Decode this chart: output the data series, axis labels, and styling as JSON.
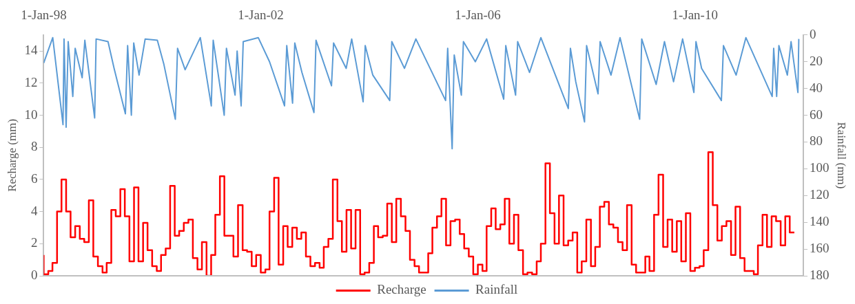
{
  "chart_data": {
    "type": "step",
    "ylabel": "Recharge (mm)",
    "y2label": "Rainfall (mm)",
    "legend": "bottom",
    "marker": "none",
    "xlim": [
      "1998-01-01",
      "2012-01-01"
    ],
    "xticks": [
      {
        "value": "1998-01-01",
        "label": "1-Jan-98"
      },
      {
        "value": "2002-01-01",
        "label": "1-Jan-02"
      },
      {
        "value": "2006-01-01",
        "label": "1-Jan-06"
      },
      {
        "value": "2010-01-01",
        "label": "1-Jan-10"
      }
    ],
    "ylim": [
      0,
      15
    ],
    "yticks": [
      0,
      2,
      4,
      6,
      8,
      10,
      12,
      14
    ],
    "y2lim": [
      180,
      0
    ],
    "y2ticks": [
      0,
      20,
      40,
      60,
      80,
      100,
      120,
      140,
      160,
      180
    ],
    "x": [
      "1998-01",
      "1998-02",
      "1998-03",
      "1998-04",
      "1998-05",
      "1998-06",
      "1998-07",
      "1998-08",
      "1998-09",
      "1998-10",
      "1998-11",
      "1998-12",
      "1999-01",
      "1999-02",
      "1999-03",
      "1999-04",
      "1999-05",
      "1999-06",
      "1999-07",
      "1999-08",
      "1999-09",
      "1999-10",
      "1999-11",
      "1999-12",
      "2000-01",
      "2000-02",
      "2000-03",
      "2000-04",
      "2000-05",
      "2000-06",
      "2000-07",
      "2000-08",
      "2000-09",
      "2000-10",
      "2000-11",
      "2000-12",
      "2001-01",
      "2001-02",
      "2001-03",
      "2001-04",
      "2001-05",
      "2001-06",
      "2001-07",
      "2001-08",
      "2001-09",
      "2001-10",
      "2001-11",
      "2001-12",
      "2002-01",
      "2002-02",
      "2002-03",
      "2002-04",
      "2002-05",
      "2002-06",
      "2002-07",
      "2002-08",
      "2002-09",
      "2002-10",
      "2002-11",
      "2002-12",
      "2003-01",
      "2003-02",
      "2003-03",
      "2003-04",
      "2003-05",
      "2003-06",
      "2003-07",
      "2003-08",
      "2003-09",
      "2003-10",
      "2003-11",
      "2003-12",
      "2004-01",
      "2004-02",
      "2004-03",
      "2004-04",
      "2004-05",
      "2004-06",
      "2004-07",
      "2004-08",
      "2004-09",
      "2004-10",
      "2004-11",
      "2004-12",
      "2005-01",
      "2005-02",
      "2005-03",
      "2005-04",
      "2005-05",
      "2005-06",
      "2005-07",
      "2005-08",
      "2005-09",
      "2005-10",
      "2005-11",
      "2005-12",
      "2006-01",
      "2006-02",
      "2006-03",
      "2006-04",
      "2006-05",
      "2006-06",
      "2006-07",
      "2006-08",
      "2006-09",
      "2006-10",
      "2006-11",
      "2006-12",
      "2007-01",
      "2007-02",
      "2007-03",
      "2007-04",
      "2007-05",
      "2007-06",
      "2007-07",
      "2007-08",
      "2007-09",
      "2007-10",
      "2007-11",
      "2007-12",
      "2008-01",
      "2008-02",
      "2008-03",
      "2008-04",
      "2008-05",
      "2008-06",
      "2008-07",
      "2008-08",
      "2008-09",
      "2008-10",
      "2008-11",
      "2008-12",
      "2009-01",
      "2009-02",
      "2009-03",
      "2009-04",
      "2009-05",
      "2009-06",
      "2009-07",
      "2009-08",
      "2009-09",
      "2009-10",
      "2009-11",
      "2009-12",
      "2010-01",
      "2010-02",
      "2010-03",
      "2010-04",
      "2010-05",
      "2010-06",
      "2010-07",
      "2010-08",
      "2010-09",
      "2010-10",
      "2010-11",
      "2010-12",
      "2011-01",
      "2011-02",
      "2011-03",
      "2011-04",
      "2011-05",
      "2011-06",
      "2011-07",
      "2011-08",
      "2011-09",
      "2011-10",
      "2011-11"
    ],
    "series": [
      {
        "name": "Recharge",
        "color": "#ff0000",
        "values": [
          1.3,
          0.1,
          0.3,
          0.8,
          4.0,
          6.0,
          4.0,
          2.4,
          3.1,
          2.3,
          2.1,
          4.7,
          1.2,
          0.6,
          0.2,
          0.8,
          4.1,
          3.7,
          5.4,
          3.7,
          0.9,
          5.5,
          0.9,
          3.3,
          1.6,
          0.6,
          0.3,
          1.3,
          1.7,
          5.6,
          2.5,
          2.8,
          3.3,
          3.5,
          1.1,
          0.4,
          2.1,
          0.0,
          1.3,
          3.8,
          6.2,
          2.5,
          2.5,
          1.2,
          4.4,
          1.6,
          1.5,
          0.6,
          1.3,
          0.2,
          0.4,
          4.0,
          6.1,
          0.7,
          3.1,
          1.8,
          3.0,
          2.3,
          2.7,
          1.2,
          0.6,
          0.8,
          0.5,
          1.8,
          2.3,
          6.0,
          3.4,
          1.5,
          4.1,
          1.7,
          4.1,
          0.1,
          0.2,
          0.8,
          3.1,
          2.4,
          2.5,
          4.5,
          2.1,
          4.8,
          3.7,
          2.8,
          1.0,
          0.6,
          0.2,
          0.2,
          1.4,
          3.0,
          3.7,
          4.8,
          1.9,
          3.4,
          3.5,
          2.6,
          1.7,
          1.2,
          0.1,
          0.7,
          0.3,
          3.1,
          4.2,
          2.9,
          3.2,
          4.8,
          2.0,
          3.8,
          1.6,
          0.1,
          0.2,
          0.1,
          0.9,
          2.0,
          7.0,
          3.9,
          2.0,
          5.0,
          1.9,
          2.2,
          2.7,
          0.2,
          0.9,
          3.5,
          0.6,
          1.8,
          4.3,
          4.6,
          3.2,
          3.0,
          2.1,
          1.6,
          4.4,
          0.7,
          0.2,
          0.2,
          1.2,
          0.3,
          3.8,
          6.3,
          1.8,
          3.5,
          1.5,
          3.4,
          0.9,
          3.9,
          0.3,
          0.5,
          0.6,
          1.6,
          7.7,
          4.4,
          2.2,
          3.1,
          3.4,
          1.3,
          4.3,
          1.1,
          0.3,
          0.3,
          0.1,
          1.9,
          3.8,
          1.8,
          3.7,
          3.4,
          1.9,
          3.7,
          2.7
        ]
      },
      {
        "name": "Rainfall",
        "color": "#5b9bd5",
        "type": "line",
        "axis": "y2",
        "x": [
          "1998-01-01",
          "1998-03-03",
          "1998-05-11",
          "1998-05-18",
          "1998-06-01",
          "1998-06-15",
          "1998-07-16",
          "1998-08-01",
          "1998-09-17",
          "1998-10-05",
          "1998-12-10",
          "1998-12-20",
          "1999-03-10",
          "1999-04-20",
          "1999-07-05",
          "1999-07-20",
          "1999-08-14",
          "1999-08-30",
          "1999-10-05",
          "1999-11-15",
          "2000-02-05",
          "2000-03-20",
          "2000-06-05",
          "2000-06-20",
          "2000-08-10",
          "2000-11-20",
          "2001-02-02",
          "2001-02-15",
          "2001-04-30",
          "2001-05-15",
          "2001-07-12",
          "2001-07-26",
          "2001-08-22",
          "2001-09-05",
          "2001-12-15",
          "2002-03-01",
          "2002-06-10",
          "2002-06-25",
          "2002-08-03",
          "2002-08-18",
          "2002-10-05",
          "2002-12-25",
          "2003-01-08",
          "2003-04-22",
          "2003-05-06",
          "2003-07-30",
          "2003-09-05",
          "2003-11-21",
          "2003-12-05",
          "2004-01-25",
          "2004-05-18",
          "2004-06-01",
          "2004-08-25",
          "2004-11-10",
          "2005-05-29",
          "2005-06-12",
          "2005-07-12",
          "2005-07-26",
          "2005-09-12",
          "2005-09-26",
          "2005-12-15",
          "2006-03-01",
          "2006-06-24",
          "2006-07-08",
          "2006-09-12",
          "2006-09-26",
          "2006-12-15",
          "2007-03-01",
          "2007-09-02",
          "2007-09-16",
          "2007-10-22",
          "2007-12-20",
          "2008-01-03",
          "2008-03-20",
          "2008-04-03",
          "2008-06-15",
          "2008-08-15",
          "2008-12-25",
          "2009-01-08",
          "2009-04-15",
          "2009-06-10",
          "2009-08-10",
          "2009-10-10",
          "2009-12-25",
          "2010-01-08",
          "2010-02-15",
          "2010-06-28",
          "2010-07-12",
          "2010-10-05",
          "2010-12-10",
          "2011-06-05",
          "2011-06-15",
          "2011-07-05",
          "2011-07-20",
          "2011-09-15",
          "2011-10-10",
          "2011-11-25",
          "2011-12-01"
        ],
        "values": [
          21,
          2,
          67,
          3,
          69,
          5,
          46,
          10,
          32,
          4,
          62,
          3,
          5,
          25,
          59,
          8,
          60,
          6,
          30,
          3,
          4,
          22,
          63,
          10,
          26,
          2,
          53,
          4,
          60,
          10,
          45,
          12,
          53,
          5,
          2,
          20,
          53,
          8,
          51,
          6,
          28,
          58,
          4,
          38,
          6,
          25,
          3,
          50,
          8,
          30,
          49,
          5,
          25,
          3,
          49,
          10,
          85,
          15,
          45,
          5,
          20,
          3,
          48,
          8,
          45,
          5,
          28,
          2,
          55,
          10,
          35,
          65,
          8,
          44,
          5,
          30,
          2,
          63,
          3,
          37,
          5,
          35,
          3,
          43,
          5,
          25,
          49,
          8,
          30,
          2,
          46,
          10,
          46,
          8,
          30,
          5,
          43,
          3
        ]
      }
    ]
  }
}
